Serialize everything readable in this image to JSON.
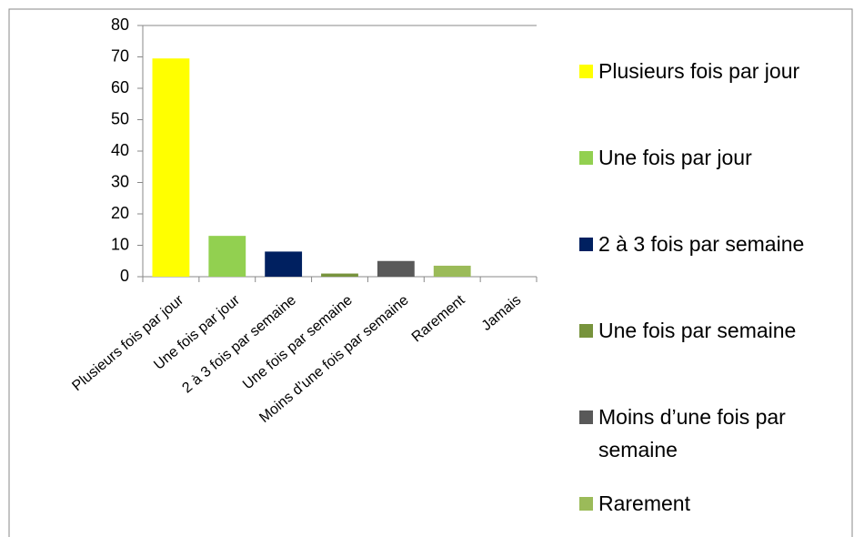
{
  "chart_data": {
    "type": "bar",
    "categories": [
      "Plusieurs fois par jour",
      "Une fois par jour",
      "2 à 3 fois par semaine",
      "Une fois par semaine",
      "Moins d’une fois par semaine",
      "Rarement",
      "Jamais"
    ],
    "values": [
      69.5,
      13,
      8,
      1,
      5,
      3.5,
      0
    ],
    "colors": [
      "#ffff00",
      "#92d050",
      "#002060",
      "#77933c",
      "#595959",
      "#9bbb59",
      null
    ],
    "ylim": [
      0,
      80
    ],
    "yticks": [
      0,
      10,
      20,
      30,
      40,
      50,
      60,
      70,
      80
    ],
    "grid": false,
    "legend": "right"
  }
}
